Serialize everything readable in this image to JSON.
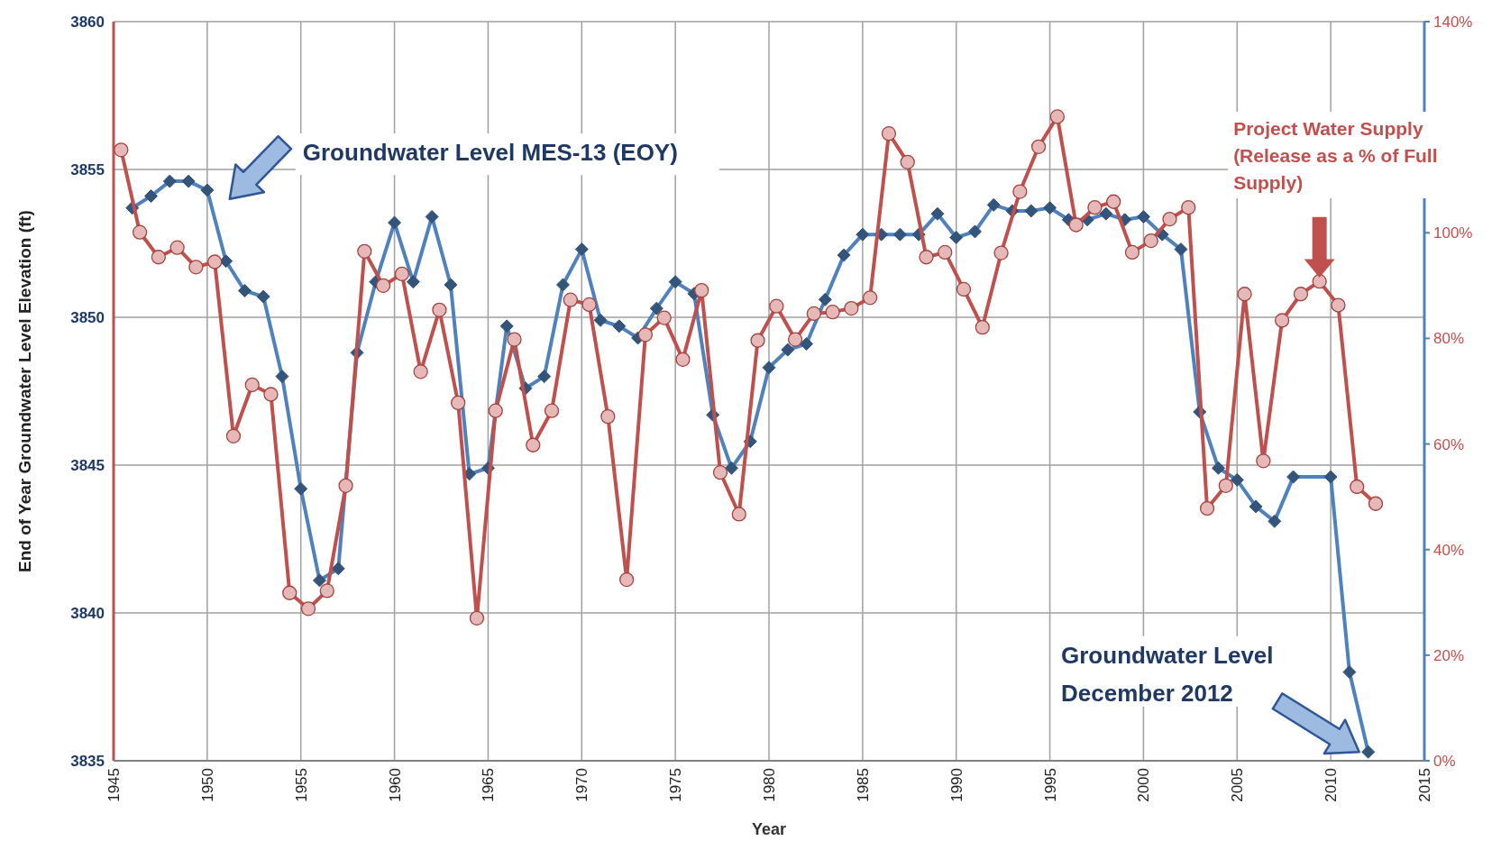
{
  "chart_data": {
    "type": "line",
    "xlabel": "Year",
    "ylabel": "End of Year Groundwater Level Elevation (ft)",
    "xlim": [
      1945,
      2015
    ],
    "xticks": [
      1945,
      1950,
      1955,
      1960,
      1965,
      1970,
      1975,
      1980,
      1985,
      1990,
      1995,
      2000,
      2005,
      2010,
      2015
    ],
    "ylim": [
      3835,
      3860
    ],
    "yticks": [
      3835,
      3840,
      3845,
      3850,
      3855,
      3860
    ],
    "y2lim": [
      0,
      140
    ],
    "y2ticks": [
      {
        "value": 0,
        "label": "0%"
      },
      {
        "value": 20,
        "label": "20%"
      },
      {
        "value": 40,
        "label": "40%"
      },
      {
        "value": 60,
        "label": "60%"
      },
      {
        "value": 80,
        "label": "80%"
      },
      {
        "value": 100,
        "label": "100%"
      },
      {
        "value": 140,
        "label": "140%"
      }
    ],
    "grid": true,
    "line_style": "solid",
    "series": [
      {
        "name": "Groundwater Level MES-13 (EOY)",
        "color": "#4f81bd",
        "marker": "diamond",
        "x": [
          1946,
          1947,
          1948,
          1949,
          1950,
          1951,
          1952,
          1953,
          1954,
          1955,
          1956,
          1957,
          1958,
          1959,
          1960,
          1961,
          1962,
          1963,
          1964,
          1965,
          1966,
          1967,
          1968,
          1969,
          1970,
          1971,
          1972,
          1973,
          1974,
          1975,
          1976,
          1977,
          1978,
          1979,
          1980,
          1981,
          1982,
          1983,
          1984,
          1985,
          1986,
          1987,
          1988,
          1989,
          1990,
          1991,
          1992,
          1993,
          1994,
          1995,
          1996,
          1997,
          1998,
          1999,
          2000,
          2001,
          2002,
          2003,
          2004,
          2005,
          2006,
          2007,
          2008,
          2010,
          2011,
          2012
        ],
        "values": [
          3853.7,
          3854.1,
          3854.6,
          3854.6,
          3854.3,
          3851.9,
          3850.9,
          3850.7,
          3848.0,
          3844.2,
          3841.1,
          3841.5,
          3848.8,
          3851.2,
          3853.2,
          3851.2,
          3853.4,
          3851.1,
          3844.7,
          3844.9,
          3849.7,
          3847.6,
          3848.0,
          3851.1,
          3852.3,
          3849.9,
          3849.7,
          3849.3,
          3850.3,
          3851.2,
          3850.8,
          3846.7,
          3844.9,
          3845.8,
          3848.3,
          3848.9,
          3849.1,
          3850.6,
          3852.1,
          3852.8,
          3852.8,
          3852.8,
          3852.8,
          3853.5,
          3852.7,
          3852.9,
          3853.8,
          3853.6,
          3853.6,
          3853.7,
          3853.3,
          3853.3,
          3853.5,
          3853.3,
          3853.4,
          3852.8,
          3852.3,
          3846.8,
          3844.9,
          3844.5,
          3843.6,
          3843.1,
          3844.6,
          3844.6,
          3838.0,
          3835.3
        ]
      },
      {
        "name": "Project Water Supply (Release as a % of Full Supply)",
        "color": "#c0504d",
        "marker": "circle",
        "axis": "y2",
        "x": [
          1945.4,
          1946.4,
          1947.4,
          1948.4,
          1949.4,
          1950.4,
          1951.4,
          1952.4,
          1953.4,
          1954.4,
          1955.4,
          1956.4,
          1957.4,
          1958.4,
          1959.4,
          1960.4,
          1961.4,
          1962.4,
          1963.4,
          1964.4,
          1965.4,
          1966.4,
          1967.4,
          1968.4,
          1969.4,
          1970.4,
          1971.4,
          1972.4,
          1973.4,
          1974.4,
          1975.4,
          1976.4,
          1977.4,
          1978.4,
          1979.4,
          1980.4,
          1981.4,
          1982.4,
          1983.4,
          1984.4,
          1985.4,
          1986.4,
          1987.4,
          1988.4,
          1989.4,
          1990.4,
          1991.4,
          1992.4,
          1993.4,
          1994.4,
          1995.4,
          1996.4,
          1997.4,
          1998.4,
          1999.4,
          2000.4,
          2001.4,
          2002.4,
          2003.4,
          2004.4,
          2005.4,
          2006.4,
          2007.4,
          2008.4,
          2009.4,
          2010.4,
          2011.4,
          2012.4
        ],
        "values": [
          115.7,
          100.1,
          95.4,
          97.2,
          93.5,
          94.5,
          61.5,
          71.2,
          69.4,
          31.8,
          28.8,
          32.2,
          52.1,
          96.5,
          90.0,
          92.2,
          73.7,
          85.4,
          67.8,
          27.0,
          66.3,
          79.8,
          59.8,
          66.3,
          87.3,
          86.4,
          65.2,
          34.3,
          80.7,
          83.9,
          76.0,
          89.1,
          54.6,
          46.7,
          79.6,
          86.1,
          79.8,
          84.7,
          85.0,
          85.7,
          87.7,
          118.8,
          113.4,
          95.4,
          96.3,
          89.3,
          82.1,
          96.2,
          107.8,
          116.3,
          122.0,
          101.5,
          104.8,
          105.9,
          96.3,
          98.5,
          102.6,
          104.8,
          47.8,
          52.1,
          88.4,
          56.8,
          83.4,
          88.4,
          90.8,
          86.3,
          51.9,
          48.7
        ]
      }
    ],
    "annotations": [
      "Groundwater Level December 2012"
    ]
  }
}
